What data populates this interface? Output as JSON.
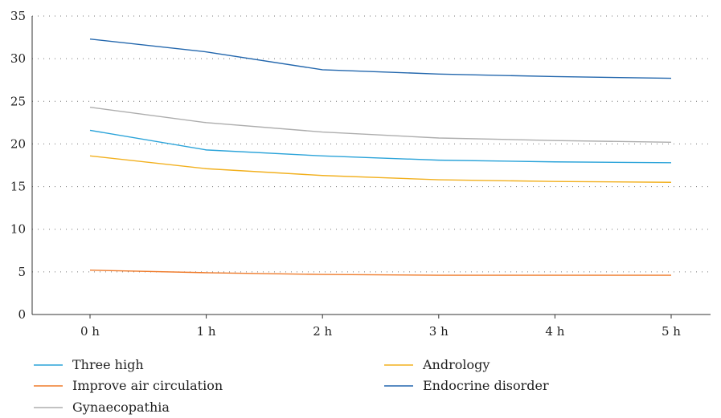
{
  "chart_data": {
    "type": "line",
    "title": "",
    "xlabel": "",
    "ylabel": "",
    "categories": [
      "0 h",
      "1 h",
      "2 h",
      "3 h",
      "4 h",
      "5 h"
    ],
    "ylim": [
      0,
      35
    ],
    "yticks": [
      0,
      5,
      10,
      15,
      20,
      25,
      30,
      35
    ],
    "grid": "horizontal-dotted",
    "legend": "bottom",
    "series": [
      {
        "name": "Three high",
        "color": "#2aa3d9",
        "values": [
          21.6,
          19.3,
          18.6,
          18.1,
          17.9,
          17.8
        ]
      },
      {
        "name": "Andrology",
        "color": "#f2b01e",
        "values": [
          18.6,
          17.1,
          16.3,
          15.8,
          15.6,
          15.5
        ]
      },
      {
        "name": "Improve air circulation",
        "color": "#ef7b2b",
        "values": [
          5.2,
          4.9,
          4.7,
          4.6,
          4.6,
          4.6
        ]
      },
      {
        "name": "Endocrine disorder",
        "color": "#2367ad",
        "values": [
          32.3,
          30.8,
          28.7,
          28.2,
          27.9,
          27.7
        ]
      },
      {
        "name": "Gynaecopathia",
        "color": "#adadad",
        "values": [
          24.3,
          22.5,
          21.4,
          20.7,
          20.4,
          20.2
        ]
      }
    ]
  }
}
